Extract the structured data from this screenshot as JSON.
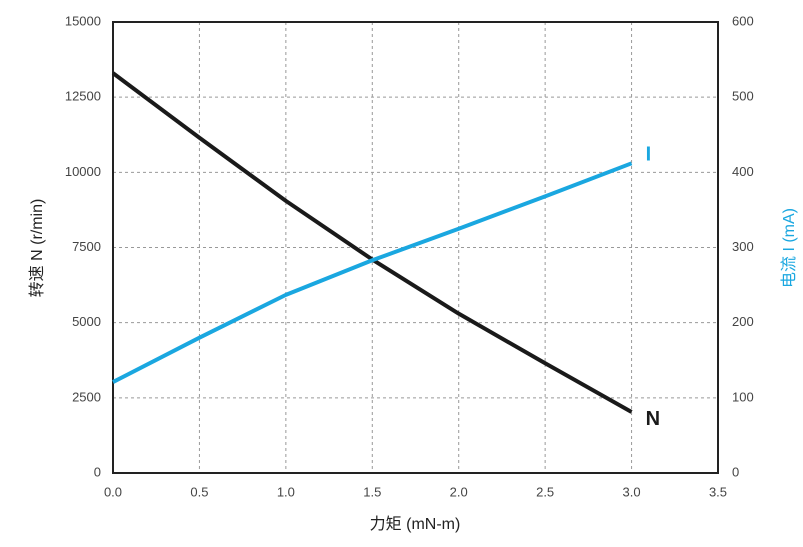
{
  "chart_data": {
    "type": "line",
    "x_label": "力矩 (mN-m)",
    "y_label": "转速 N (r/min)",
    "y2_label": "电流 I (mA)",
    "x": [
      0,
      0.5,
      1.0,
      1.5,
      2.0,
      2.5,
      3.0
    ],
    "series": [
      {
        "name": "N",
        "color": "#1a1a1a",
        "values": [
          13300,
          11150,
          9050,
          7100,
          5300,
          3650,
          2030
        ]
      },
      {
        "name": "I",
        "color": "#1aa7e0",
        "axis": "y2",
        "values": [
          121,
          180,
          237,
          283,
          325,
          368,
          412
        ]
      }
    ],
    "xlim": [
      0,
      3.5
    ],
    "xticks": [
      {
        "value": 0,
        "label": "0.0"
      },
      0.5,
      {
        "value": 1,
        "label": "1.0"
      },
      1.5,
      {
        "value": 2,
        "label": "2.0"
      },
      2.5,
      {
        "value": 3,
        "label": "3.0"
      },
      3.5
    ],
    "ylim": [
      0,
      15000
    ],
    "yticks": [
      0,
      2500,
      5000,
      7500,
      10000,
      12500,
      15000
    ],
    "y2lim": [
      0,
      600
    ],
    "y2ticks": [
      0,
      100,
      200,
      300,
      400,
      500,
      600
    ],
    "grid": true
  }
}
